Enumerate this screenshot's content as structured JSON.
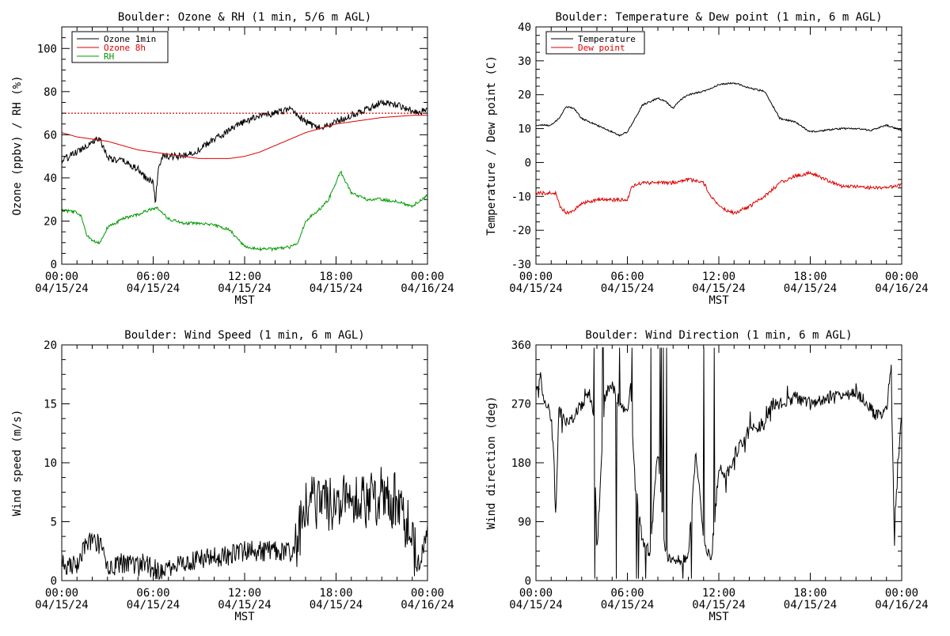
{
  "colors": {
    "black": "#000000",
    "red": "#dd0000",
    "green": "#009900"
  },
  "x_ticks": {
    "times": [
      "00:00",
      "06:00",
      "12:00",
      "18:00",
      "00:00"
    ],
    "dates": [
      "04/15/24",
      "04/15/24",
      "04/15/24",
      "04/15/24",
      "04/16/24"
    ]
  },
  "chart_data": [
    {
      "type": "line",
      "title": "Boulder: Ozone & RH (1 min, 5/6 m AGL)",
      "xlabel": "MST",
      "ylabel": "Ozone (ppbv) / RH (%)",
      "xlim": [
        0,
        24
      ],
      "ylim": [
        0,
        110
      ],
      "yticks": [
        0,
        20,
        40,
        60,
        80,
        100
      ],
      "legend": "top-left",
      "reference_line": {
        "y": 70,
        "style": "dotted",
        "color": "#dd0000"
      },
      "series": [
        {
          "name": "Ozone 1min",
          "color": "#000000",
          "noise": 1.6,
          "x": [
            0,
            1,
            2,
            2.5,
            3,
            3.5,
            4,
            4.5,
            5,
            5.5,
            6,
            6.15,
            6.3,
            6.6,
            7,
            8,
            9,
            10,
            11,
            12,
            13,
            14,
            15,
            15.5,
            16,
            16.5,
            17,
            18,
            19,
            20,
            21,
            22,
            23,
            24
          ],
          "y": [
            48,
            52,
            57,
            58,
            50,
            48,
            48,
            46,
            44,
            40,
            38,
            29,
            42,
            50,
            50,
            50,
            53,
            58,
            62,
            66,
            69,
            70,
            72,
            69,
            66,
            64,
            63,
            66,
            69,
            72,
            75,
            74,
            71,
            71
          ]
        },
        {
          "name": "Ozone 8h",
          "color": "#dd0000",
          "noise": 0,
          "x": [
            0,
            1,
            2,
            3,
            4,
            5,
            6,
            7,
            8,
            9,
            10,
            11,
            12,
            13,
            14,
            15,
            16,
            17,
            18,
            19,
            20,
            21,
            22,
            23,
            24
          ],
          "y": [
            61,
            59,
            58,
            57,
            55,
            53,
            52,
            51,
            50,
            49,
            49,
            49,
            50,
            52,
            55,
            58,
            61,
            63,
            65,
            66,
            67,
            68,
            68.5,
            69,
            69
          ]
        },
        {
          "name": "RH",
          "color": "#009900",
          "noise": 0.7,
          "x": [
            0,
            1,
            1.3,
            1.6,
            2,
            2.5,
            3,
            4,
            5,
            6,
            6.3,
            7,
            8,
            9,
            10,
            11,
            12,
            13,
            14,
            15,
            15.5,
            16,
            17,
            17.5,
            18,
            18.3,
            19,
            20,
            21,
            22,
            23,
            24
          ],
          "y": [
            25,
            24,
            22,
            14,
            11,
            10,
            17,
            21,
            23,
            26,
            26,
            21,
            19,
            19,
            18,
            16,
            8,
            7,
            7,
            8,
            10,
            20,
            26,
            30,
            38,
            43,
            33,
            30,
            30,
            29,
            27,
            32
          ]
        }
      ]
    },
    {
      "type": "line",
      "title": "Boulder: Temperature & Dew point (1 min, 6 m AGL)",
      "xlabel": "MST",
      "ylabel": "Temperature / Dew point (C)",
      "xlim": [
        0,
        24
      ],
      "ylim": [
        -30,
        40
      ],
      "yticks": [
        -30,
        -20,
        -10,
        0,
        10,
        20,
        30,
        40
      ],
      "legend": "top-left",
      "series": [
        {
          "name": "Temperature",
          "color": "#000000",
          "noise": 0.25,
          "x": [
            0,
            1,
            1.5,
            2,
            2.5,
            3,
            4,
            5,
            5.5,
            6,
            6.5,
            7,
            8,
            8.5,
            9,
            9.5,
            10,
            11,
            12,
            13,
            14,
            15,
            15.5,
            16,
            17,
            18,
            19,
            20,
            21,
            22,
            23,
            24
          ],
          "y": [
            11,
            11,
            13,
            16.5,
            16,
            13,
            11,
            9,
            8,
            9,
            13,
            17,
            19,
            18,
            16,
            18.5,
            20,
            21,
            23,
            23.5,
            22,
            21,
            17,
            13,
            12,
            9,
            9.5,
            10,
            10,
            9.5,
            11,
            9.5
          ]
        },
        {
          "name": "Dew point",
          "color": "#dd0000",
          "noise": 0.5,
          "x": [
            0,
            0.5,
            1,
            1.3,
            1.6,
            2,
            2.5,
            3,
            4,
            5,
            6,
            6.3,
            7,
            8,
            9,
            10,
            11,
            11.5,
            12,
            13,
            14,
            15,
            16,
            17,
            18,
            19,
            20,
            21,
            22,
            23,
            24
          ],
          "y": [
            -9,
            -9,
            -9,
            -9,
            -13,
            -15,
            -14,
            -12,
            -11,
            -11,
            -11,
            -7,
            -6,
            -6,
            -6,
            -5,
            -6,
            -10,
            -13,
            -15,
            -13,
            -10,
            -6,
            -4,
            -3,
            -5,
            -7,
            -7,
            -7.5,
            -7.5,
            -6.5
          ]
        }
      ]
    },
    {
      "type": "line",
      "title": "Boulder: Wind Speed (1 min, 6 m AGL)",
      "xlabel": "MST",
      "ylabel": "Wind speed (m/s)",
      "xlim": [
        0,
        24
      ],
      "ylim": [
        0,
        20
      ],
      "yticks": [
        0,
        5,
        10,
        15,
        20
      ],
      "series": [
        {
          "name": "",
          "color": "#000000",
          "noise": 0.9,
          "x": [
            0,
            0.5,
            1,
            1.5,
            2,
            2.5,
            3,
            4,
            5,
            5.5,
            6,
            7,
            8,
            9,
            10,
            11,
            12,
            13,
            14,
            15,
            15.5,
            16,
            17,
            18,
            19,
            20,
            21,
            22,
            23,
            23.3,
            23.7,
            24
          ],
          "y": [
            1.3,
            1.2,
            1.4,
            3,
            3.5,
            3,
            1,
            1.5,
            1.2,
            1.5,
            1,
            0.8,
            1.5,
            1.8,
            2,
            2.2,
            2.5,
            2.5,
            2.6,
            2.3,
            4,
            7,
            7,
            6.5,
            7,
            6.5,
            7.5,
            6.5,
            4,
            1,
            2.5,
            5
          ]
        }
      ]
    },
    {
      "type": "line",
      "title": "Boulder: Wind Direction (1 min, 6 m AGL)",
      "xlabel": "MST",
      "ylabel": "Wind direction (deg)",
      "xlim": [
        0,
        24
      ],
      "ylim": [
        0,
        360
      ],
      "yticks": [
        0,
        90,
        180,
        270,
        360
      ],
      "series": [
        {
          "name": "",
          "color": "#000000",
          "noise": 10,
          "x": [
            0,
            0.3,
            0.5,
            0.8,
            1,
            1.2,
            1.3,
            1.5,
            2,
            2.5,
            3,
            3.5,
            3.8,
            4,
            4.5,
            5,
            5.5,
            6,
            6.2,
            6.5,
            7,
            7.5,
            8,
            8.5,
            9,
            9.5,
            10,
            10.5,
            11,
            11.5,
            12,
            12.5,
            13,
            14,
            15,
            15.5,
            16,
            17,
            18,
            19,
            20,
            21,
            22,
            22.5,
            23,
            23.3,
            23.5,
            24
          ],
          "y": [
            290,
            310,
            280,
            270,
            250,
            180,
            100,
            260,
            240,
            250,
            270,
            280,
            260,
            40,
            280,
            300,
            270,
            250,
            300,
            150,
            60,
            40,
            200,
            40,
            30,
            30,
            40,
            200,
            60,
            30,
            170,
            160,
            190,
            230,
            240,
            270,
            270,
            280,
            270,
            280,
            280,
            290,
            260,
            250,
            260,
            330,
            80,
            260
          ]
        }
      ]
    }
  ]
}
